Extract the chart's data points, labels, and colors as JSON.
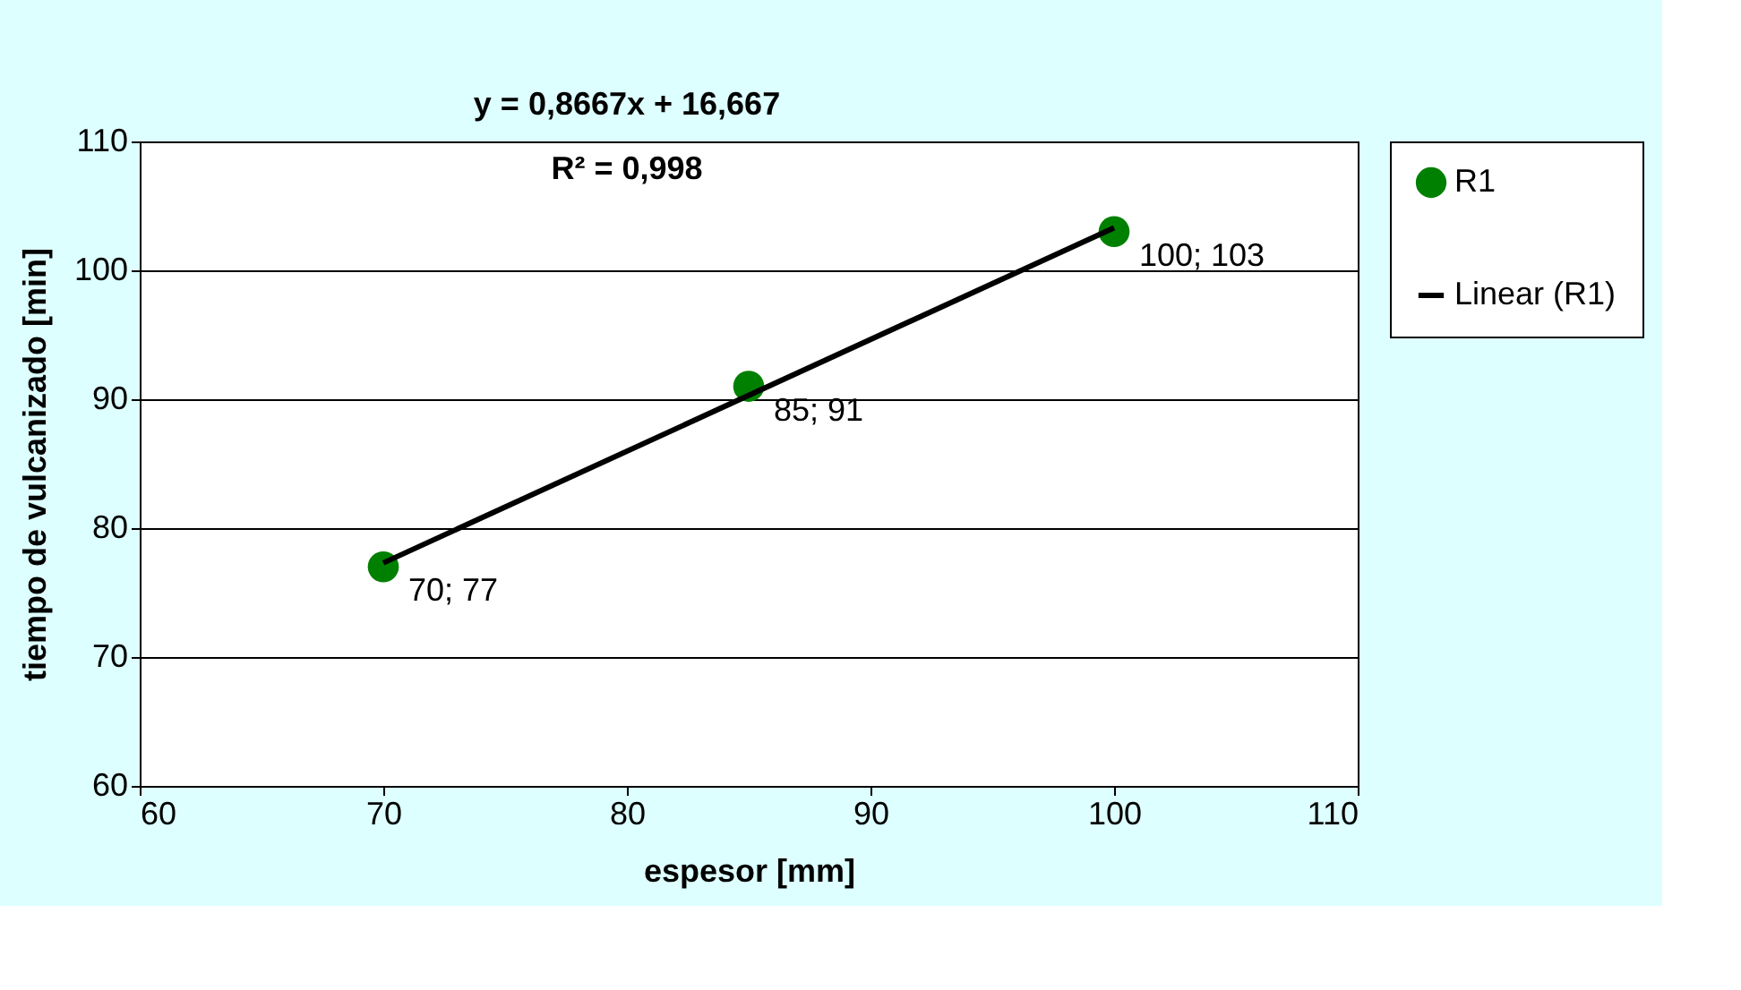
{
  "chart_data": {
    "type": "scatter",
    "xlabel": "espesor [mm]",
    "ylabel": "tiempo de vulcanizado [min]",
    "annotations": [
      "y = 0,8667x + 16,667",
      "R² = 0,998"
    ],
    "series": [
      {
        "name": "R1",
        "color": "#008000",
        "marker": "circle",
        "x": [
          70,
          85,
          100
        ],
        "values": [
          77,
          91,
          103
        ],
        "value_labels": [
          "70; 77",
          "85; 91",
          "100; 103"
        ]
      },
      {
        "name": "Linear (R1)",
        "type": "line",
        "color": "#000000",
        "marker": "none",
        "line_style": "solid",
        "x": [
          70,
          100
        ],
        "values": [
          77.3,
          103.3
        ]
      }
    ],
    "xlim": [
      60,
      110
    ],
    "xticks": [
      60,
      70,
      80,
      90,
      100,
      110
    ],
    "ylim": [
      60,
      110
    ],
    "yticks": [
      60,
      70,
      80,
      90,
      100,
      110
    ],
    "grid": "y",
    "legend": "right"
  }
}
